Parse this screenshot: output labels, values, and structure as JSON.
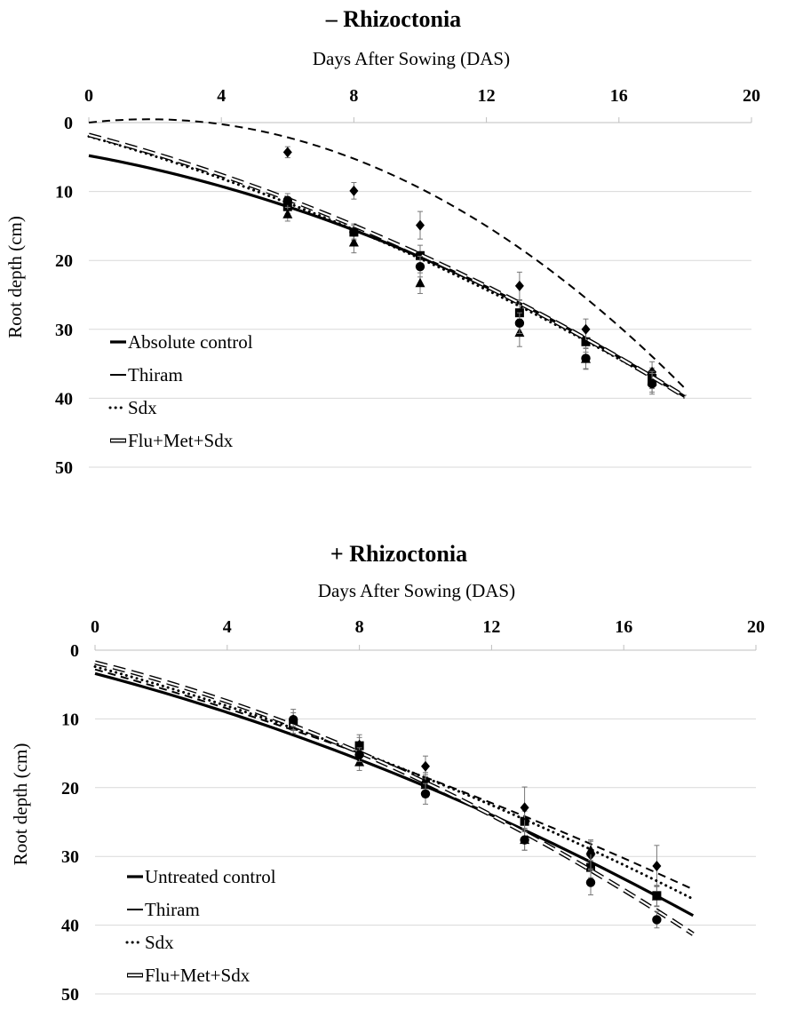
{
  "chart_data": [
    {
      "type": "line",
      "title": "– Rhizoctonia",
      "xlabel": "Days After Sowing (DAS)",
      "ylabel": "Root depth (cm)",
      "xlim": [
        0,
        20
      ],
      "ylim": [
        0,
        50
      ],
      "y_inverted": true,
      "x_axis_position": "top",
      "xticks": [
        0,
        4,
        8,
        12,
        16,
        20
      ],
      "yticks": [
        0,
        10,
        20,
        30,
        40,
        50
      ],
      "grid": "horizontal",
      "legend_position": "bottom-left",
      "series": [
        {
          "name": "Absolute control",
          "style": "solid",
          "marker": "square",
          "fit": {
            "x0": 0,
            "x1": 18,
            "y0": 4.8,
            "y1": 39.8,
            "curve": 0.55
          },
          "points": [
            {
              "x": 6,
              "y": 12.2,
              "err": 1.0
            },
            {
              "x": 8,
              "y": 15.9,
              "err": 1.2
            },
            {
              "x": 10,
              "y": 19.3,
              "err": 1.5
            },
            {
              "x": 13,
              "y": 27.6,
              "err": 1.8
            },
            {
              "x": 15,
              "y": 31.8,
              "err": 1.5
            },
            {
              "x": 17,
              "y": 37.1,
              "err": 1.5
            }
          ]
        },
        {
          "name": "Thiram",
          "style": "dash",
          "marker": "diamond",
          "fit": {
            "x0": 0,
            "x1": 18,
            "y0": 0.0,
            "y1": 38.6,
            "curve": 1.25
          },
          "points": [
            {
              "x": 6,
              "y": 4.3,
              "err": 0.8
            },
            {
              "x": 8,
              "y": 9.9,
              "err": 1.2
            },
            {
              "x": 10,
              "y": 14.9,
              "err": 2.0
            },
            {
              "x": 13,
              "y": 23.7,
              "err": 2.0
            },
            {
              "x": 15,
              "y": 30.0,
              "err": 1.5
            },
            {
              "x": 17,
              "y": 36.2,
              "err": 1.5
            }
          ]
        },
        {
          "name": "Sdx",
          "style": "dot",
          "marker": "triangle",
          "fit": {
            "x0": 0,
            "x1": 18,
            "y0": 2.0,
            "y1": 39.8,
            "curve": 0.35
          },
          "points": [
            {
              "x": 6,
              "y": 13.3,
              "err": 1.0
            },
            {
              "x": 8,
              "y": 17.4,
              "err": 1.5
            },
            {
              "x": 10,
              "y": 23.3,
              "err": 1.5
            },
            {
              "x": 13,
              "y": 30.5,
              "err": 2.0
            },
            {
              "x": 15,
              "y": 34.3,
              "err": 1.5
            },
            {
              "x": 17,
              "y": 37.6,
              "err": 1.5
            }
          ]
        },
        {
          "name": "Flu+Met+Sdx",
          "style": "double",
          "marker": "circle",
          "fit": {
            "x0": 0,
            "x1": 18,
            "y0": 1.8,
            "y1": 39.8,
            "curve": 0.4
          },
          "points": [
            {
              "x": 6,
              "y": 11.3,
              "err": 1.0
            },
            {
              "x": 8,
              "y": 15.9,
              "err": 1.0
            },
            {
              "x": 10,
              "y": 20.9,
              "err": 1.5
            },
            {
              "x": 13,
              "y": 29.1,
              "err": 1.5
            },
            {
              "x": 15,
              "y": 34.2,
              "err": 1.5
            },
            {
              "x": 17,
              "y": 37.9,
              "err": 1.5
            }
          ]
        }
      ]
    },
    {
      "type": "line",
      "title": "+ Rhizoctonia",
      "xlabel": "Days After Sowing (DAS)",
      "ylabel": "Root depth (cm)",
      "xlim": [
        0,
        20
      ],
      "ylim": [
        0,
        50
      ],
      "y_inverted": true,
      "x_axis_position": "top",
      "xticks": [
        0,
        4,
        8,
        12,
        16,
        20
      ],
      "yticks": [
        0,
        10,
        20,
        30,
        40,
        50
      ],
      "grid": "horizontal",
      "legend_position": "bottom-left",
      "series": [
        {
          "name": "Untreated control",
          "style": "solid",
          "marker": "square",
          "fit": {
            "x0": 0,
            "x1": 18.1,
            "y0": 3.4,
            "y1": 38.6,
            "curve": 0.35
          },
          "points": [
            {
              "x": 6,
              "y": 10.9,
              "err": 1.2
            },
            {
              "x": 8,
              "y": 13.9,
              "err": 1.2
            },
            {
              "x": 10,
              "y": 19.3,
              "err": 1.5
            },
            {
              "x": 13,
              "y": 24.9,
              "err": 1.5
            },
            {
              "x": 15,
              "y": 31.6,
              "err": 1.5
            },
            {
              "x": 17,
              "y": 35.7,
              "err": 1.5
            }
          ]
        },
        {
          "name": "Thiram",
          "style": "dash",
          "marker": "diamond",
          "fit": {
            "x0": 0,
            "x1": 18.1,
            "y0": 2.8,
            "y1": 34.8,
            "curve": 0.25
          },
          "points": [
            {
              "x": 6,
              "y": 10.1,
              "err": 1.5
            },
            {
              "x": 8,
              "y": 13.8,
              "err": 1.5
            },
            {
              "x": 10,
              "y": 16.9,
              "err": 1.5
            },
            {
              "x": 13,
              "y": 22.9,
              "err": 3.0
            },
            {
              "x": 15,
              "y": 29.8,
              "err": 2.0
            },
            {
              "x": 17,
              "y": 31.4,
              "err": 3.0
            }
          ]
        },
        {
          "name": "Sdx",
          "style": "dot",
          "marker": "triangle",
          "fit": {
            "x0": 0,
            "x1": 18.1,
            "y0": 2.4,
            "y1": 36.2,
            "curve": 0.3
          },
          "points": [
            {
              "x": 6,
              "y": 10.7,
              "err": 1.0
            },
            {
              "x": 8,
              "y": 16.3,
              "err": 1.2
            },
            {
              "x": 10,
              "y": 19.6,
              "err": 1.5
            },
            {
              "x": 13,
              "y": 27.6,
              "err": 1.5
            },
            {
              "x": 15,
              "y": 29.1,
              "err": 1.5
            },
            {
              "x": 17,
              "y": 35.8,
              "err": 1.5
            }
          ]
        },
        {
          "name": "Flu+Met+Sdx",
          "style": "double",
          "marker": "circle",
          "fit": {
            "x0": 0,
            "x1": 18.1,
            "y0": 1.8,
            "y1": 41.3,
            "curve": 0.45
          },
          "points": [
            {
              "x": 6,
              "y": 10.1,
              "err": 1.0
            },
            {
              "x": 8,
              "y": 15.2,
              "err": 1.0
            },
            {
              "x": 10,
              "y": 20.9,
              "err": 1.5
            },
            {
              "x": 13,
              "y": 27.6,
              "err": 1.5
            },
            {
              "x": 15,
              "y": 33.8,
              "err": 1.8
            },
            {
              "x": 17,
              "y": 39.2,
              "err": 1.2
            }
          ]
        }
      ]
    }
  ]
}
